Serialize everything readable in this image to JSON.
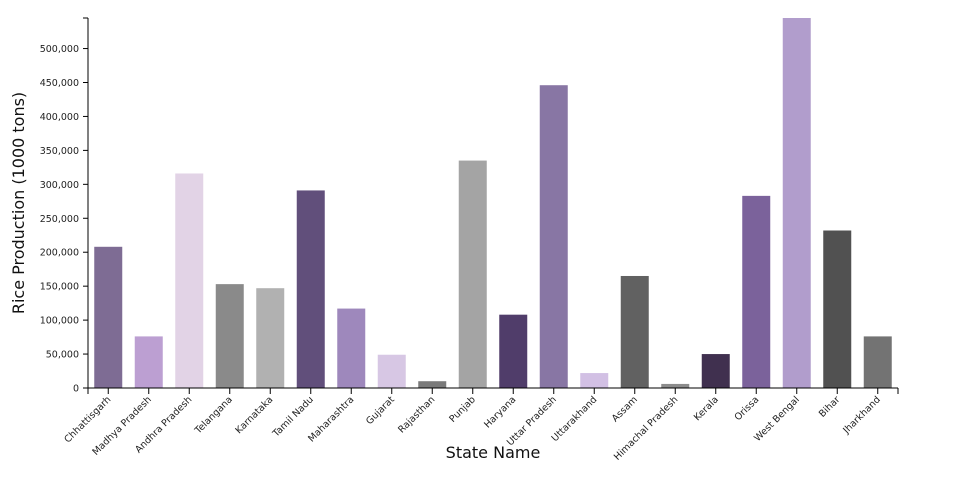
{
  "chart_data": {
    "type": "bar",
    "title": "",
    "xlabel": "State Name",
    "ylabel": "Rice Production (1000 tons)",
    "ylim": [
      0,
      545000
    ],
    "yticks": [
      0,
      50000,
      100000,
      150000,
      200000,
      250000,
      300000,
      350000,
      400000,
      450000,
      500000
    ],
    "ytick_labels": [
      "0",
      "50,000",
      "100,000",
      "150,000",
      "200,000",
      "250,000",
      "300,000",
      "350,000",
      "400,000",
      "450,000",
      "500,000"
    ],
    "grid": false,
    "legend": "none",
    "categories": [
      "Chhattisgarh",
      "Madhya Pradesh",
      "Andhra Pradesh",
      "Telangana",
      "Karnataka",
      "Tamil Nadu",
      "Maharashtra",
      "Gujarat",
      "Rajasthan",
      "Punjab",
      "Haryana",
      "Uttar Pradesh",
      "Uttarakhand",
      "Assam",
      "Himachal Pradesh",
      "Kerala",
      "Orissa",
      "West Bengal",
      "Bihar",
      "Jharkhand"
    ],
    "values": [
      208000,
      76000,
      316000,
      153000,
      147000,
      291000,
      117000,
      49000,
      10000,
      335000,
      108000,
      446000,
      22000,
      165000,
      6000,
      50000,
      283000,
      545000,
      232000,
      76000
    ],
    "colors": [
      "#7e6c94",
      "#bc9fd2",
      "#e2d3e6",
      "#8a8a8a",
      "#b1b1b1",
      "#614f7b",
      "#9e88bc",
      "#d7c7e4",
      "#7a7a7a",
      "#a4a4a4",
      "#503d6a",
      "#8876a4",
      "#d2c0e4",
      "#616161",
      "#8c8c8c",
      "#40304f",
      "#7b629b",
      "#b19dcc",
      "#515151",
      "#737373"
    ]
  }
}
